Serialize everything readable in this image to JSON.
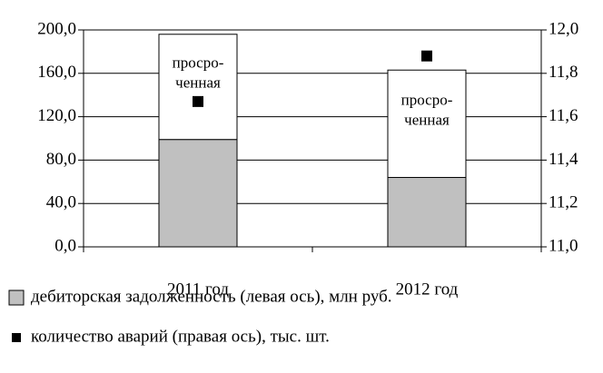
{
  "chart_data": {
    "type": "bar",
    "categories": [
      "2011 год",
      "2012 год"
    ],
    "series": [
      {
        "name": "дебиторская задолженность (левая ось), млн руб.",
        "color": "#c0c0c0",
        "values": [
          99,
          64
        ]
      },
      {
        "label_lines": [
          "просро-",
          "ченная"
        ],
        "color": "#ffffff",
        "values": [
          97,
          99
        ]
      },
      {
        "name": "количество аварий (правая ось), тыс. шт.",
        "color": "#000000",
        "axis": "y2",
        "type": "scatter",
        "values": [
          11.67,
          11.88
        ]
      }
    ],
    "ylim": [
      0,
      200
    ],
    "yticks": [
      {
        "value": 0,
        "label": "0,0"
      },
      {
        "value": 40,
        "label": "40,0"
      },
      {
        "value": 80,
        "label": "80,0"
      },
      {
        "value": 120,
        "label": "120,0"
      },
      {
        "value": 160,
        "label": "160,0"
      },
      {
        "value": 200,
        "label": "200,0"
      }
    ],
    "y2lim": [
      11,
      12
    ],
    "y2ticks": [
      {
        "value": 11,
        "label": "11,0"
      },
      {
        "value": 11.2,
        "label": "11,2"
      },
      {
        "value": 11.4,
        "label": "11,4"
      },
      {
        "value": 11.6,
        "label": "11,6"
      },
      {
        "value": 11.8,
        "label": "11,8"
      },
      {
        "value": 12,
        "label": "12,0"
      }
    ],
    "grid": true,
    "legend": "bottom"
  }
}
